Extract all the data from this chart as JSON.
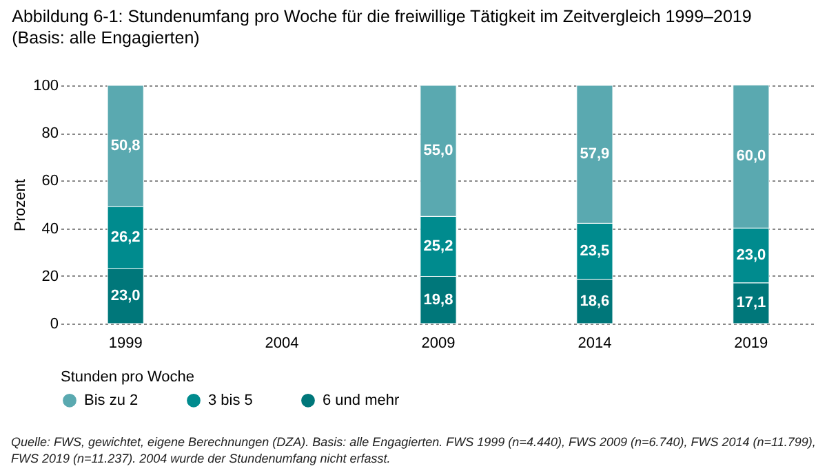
{
  "chart_data": {
    "type": "bar",
    "stacked": true,
    "title": "Abbildung 6-1: Stundenumfang pro Woche für die freiwillige Tätigkeit im Zeitvergleich 1999–2019",
    "subtitle": "(Basis: alle Engagierten)",
    "ylabel": "Prozent",
    "legend_title": "Stunden pro Woche",
    "legend": "bottom",
    "grid": "y",
    "categories": [
      "1999",
      "2004",
      "2009",
      "2014",
      "2019"
    ],
    "ylim": [
      0,
      100
    ],
    "yticks": [
      0,
      20,
      40,
      60,
      80,
      100
    ],
    "series": [
      {
        "name": "6 und mehr",
        "color": "#00777a",
        "values": [
          23.0,
          null,
          19.8,
          18.6,
          17.1
        ],
        "value_labels": [
          "23,0",
          null,
          "19,8",
          "18,6",
          "17,1"
        ]
      },
      {
        "name": "3 bis 5",
        "color": "#008b8e",
        "values": [
          26.2,
          null,
          25.2,
          23.5,
          23.0
        ],
        "value_labels": [
          "26,2",
          null,
          "25,2",
          "23,5",
          "23,0"
        ]
      },
      {
        "name": "Bis zu 2",
        "color": "#5aa9b0",
        "values": [
          50.8,
          null,
          55.0,
          57.9,
          60.0
        ],
        "value_labels": [
          "50,8",
          null,
          "55,0",
          "57,9",
          "60,0"
        ]
      }
    ],
    "annotations": [
      "Quelle: FWS, gewichtet, eigene Berechnungen (DZA). Basis: alle Engagierten. FWS 1999 (n=4.440), FWS 2009 (n=6.740), FWS 2014 (n=11.799), FWS 2019 (n=11.237). 2004 wurde der Stundenumfang nicht erfasst."
    ]
  }
}
